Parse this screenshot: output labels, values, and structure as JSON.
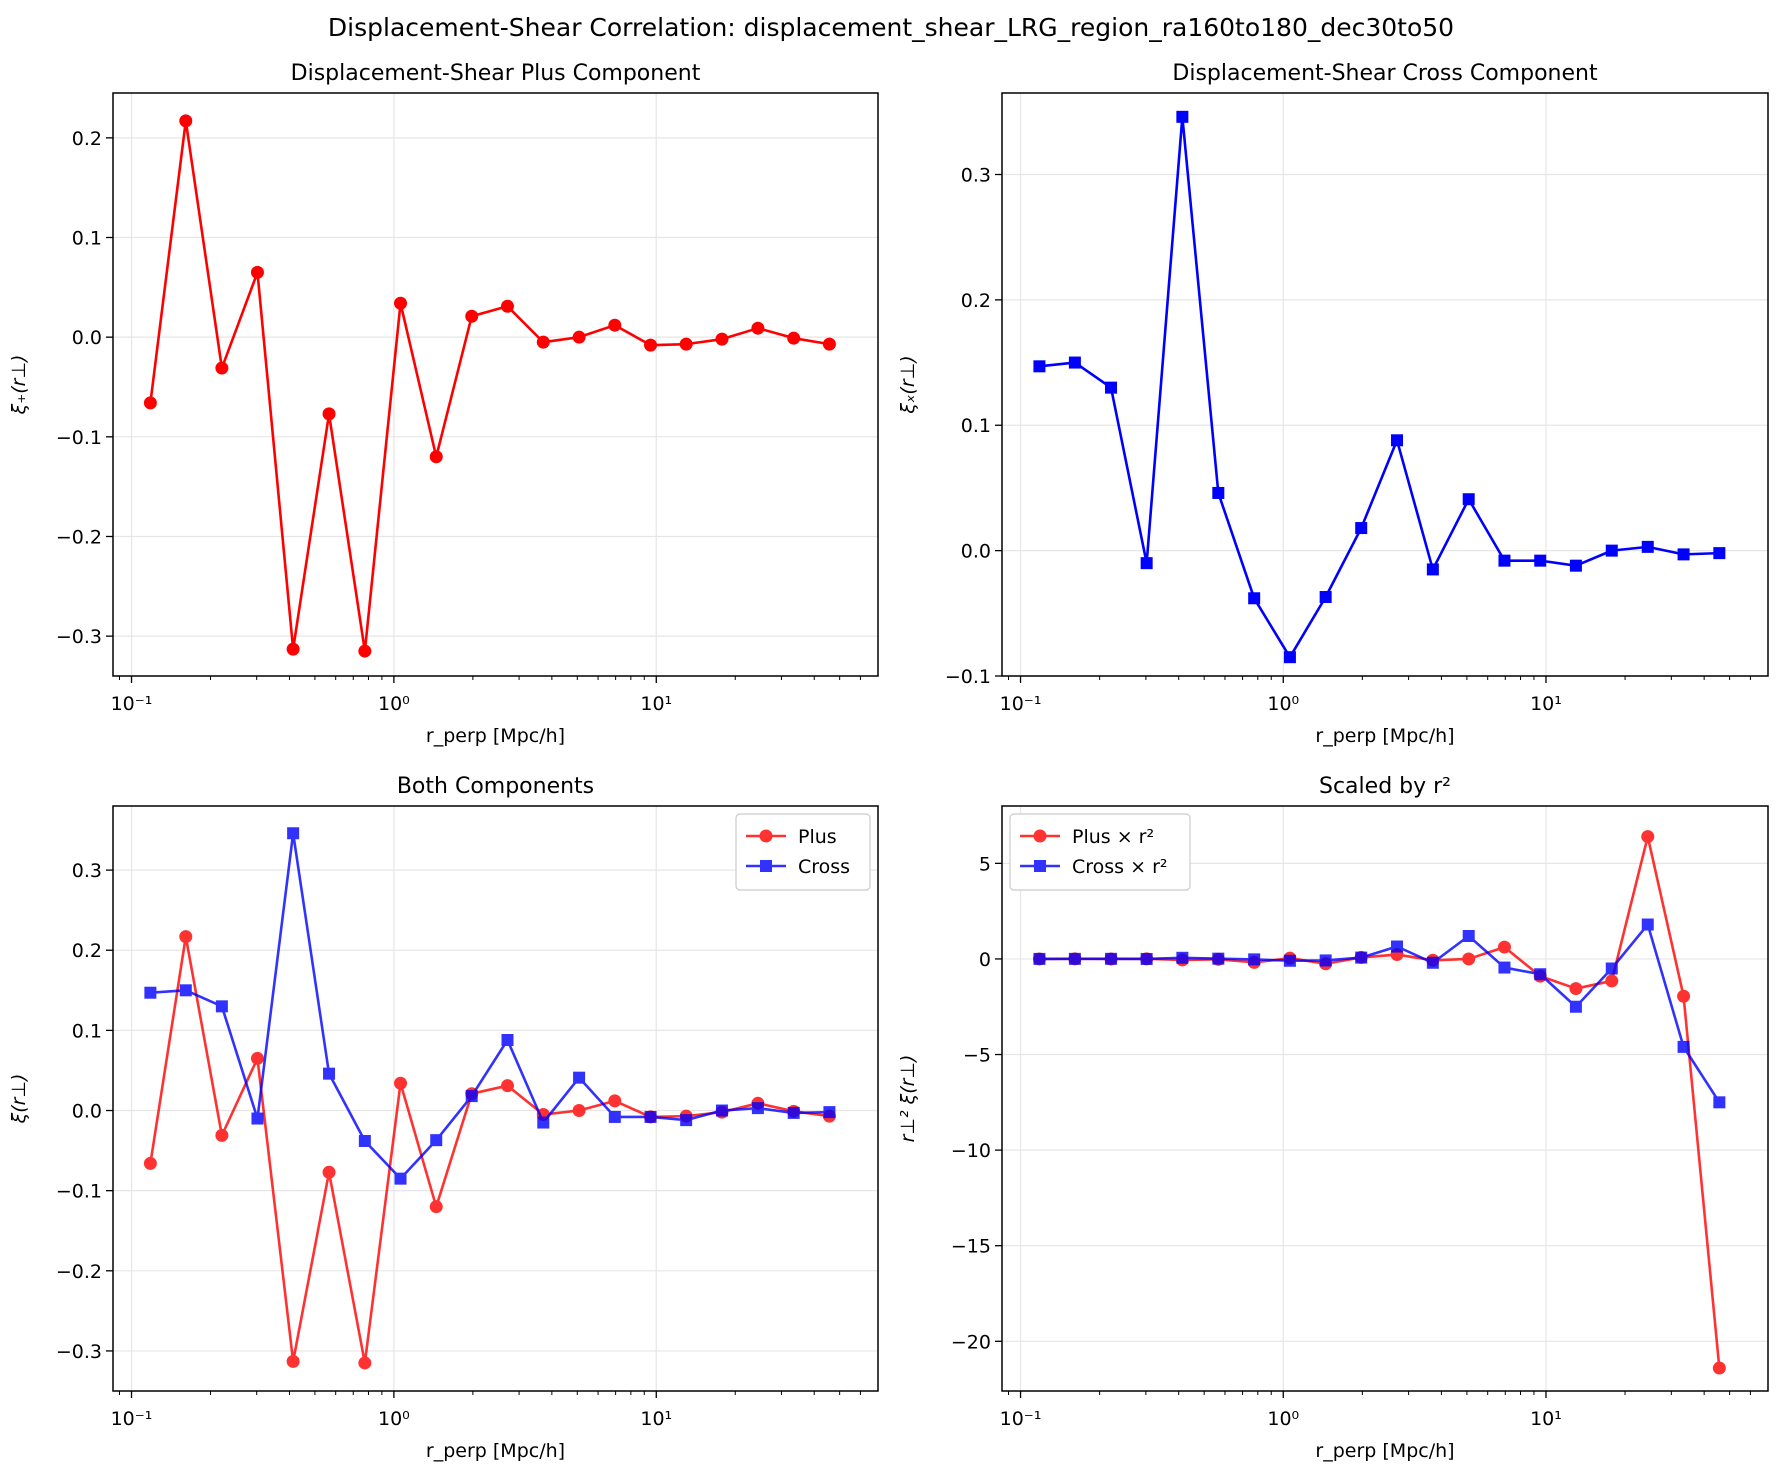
{
  "suptitle": "Displacement-Shear Correlation: displacement_shear_LRG_region_ra160to180_dec30to50",
  "colors": {
    "plus": "#ff0000",
    "cross": "#0000ff",
    "grid": "#e6e6e6"
  },
  "chart_data": [
    {
      "type": "line",
      "title": "Displacement-Shear Plus Component",
      "xlabel": "r_perp [Mpc/h]",
      "ylabel": "ξ₊(r⊥)",
      "xscale": "log",
      "xlim": [
        0.085,
        70
      ],
      "ylim": [
        -0.34,
        0.245
      ],
      "yticks": [
        -0.3,
        -0.2,
        -0.1,
        0.0,
        0.1,
        0.2
      ],
      "ytick_labels": [
        "−0.3",
        "−0.2",
        "−0.1",
        "0.0",
        "0.1",
        "0.2"
      ],
      "xticks": [
        0.1,
        1,
        10
      ],
      "xtick_labels": [
        "10⁻¹",
        "10⁰",
        "10¹"
      ],
      "grid": true,
      "x": [
        0.118,
        0.161,
        0.221,
        0.302,
        0.413,
        0.566,
        0.775,
        1.06,
        1.45,
        1.98,
        2.71,
        3.71,
        5.08,
        6.95,
        9.51,
        13.0,
        17.8,
        24.4,
        33.4,
        45.7
      ],
      "series": [
        {
          "color": "#ff0000",
          "marker": "circle",
          "alpha": 1.0,
          "values": [
            -0.066,
            0.217,
            -0.031,
            0.065,
            -0.313,
            -0.077,
            -0.315,
            0.034,
            -0.12,
            0.021,
            0.031,
            -0.005,
            0.0,
            0.012,
            -0.008,
            -0.007,
            -0.002,
            0.009,
            -0.001,
            -0.007
          ]
        }
      ]
    },
    {
      "type": "line",
      "title": "Displacement-Shear Cross Component",
      "xlabel": "r_perp [Mpc/h]",
      "ylabel": "ξₓ(r⊥)",
      "xscale": "log",
      "xlim": [
        0.085,
        70
      ],
      "ylim": [
        -0.1,
        0.365
      ],
      "yticks": [
        -0.1,
        0.0,
        0.1,
        0.2,
        0.3
      ],
      "ytick_labels": [
        "−0.1",
        "0.0",
        "0.1",
        "0.2",
        "0.3"
      ],
      "xticks": [
        0.1,
        1,
        10
      ],
      "xtick_labels": [
        "10⁻¹",
        "10⁰",
        "10¹"
      ],
      "grid": true,
      "x": [
        0.118,
        0.161,
        0.221,
        0.302,
        0.413,
        0.566,
        0.775,
        1.06,
        1.45,
        1.98,
        2.71,
        3.71,
        5.08,
        6.95,
        9.51,
        13.0,
        17.8,
        24.4,
        33.4,
        45.7
      ],
      "series": [
        {
          "color": "#0000ff",
          "marker": "square",
          "alpha": 1.0,
          "values": [
            0.147,
            0.15,
            0.13,
            -0.01,
            0.346,
            0.046,
            -0.038,
            -0.085,
            -0.037,
            0.018,
            0.088,
            -0.015,
            0.041,
            -0.008,
            -0.008,
            -0.012,
            0.0,
            0.003,
            -0.003,
            -0.002
          ]
        }
      ]
    },
    {
      "type": "line",
      "title": "Both Components",
      "xlabel": "r_perp [Mpc/h]",
      "ylabel": "ξ(r⊥)",
      "xscale": "log",
      "xlim": [
        0.085,
        70
      ],
      "ylim": [
        -0.35,
        0.38
      ],
      "yticks": [
        -0.3,
        -0.2,
        -0.1,
        0.0,
        0.1,
        0.2,
        0.3
      ],
      "ytick_labels": [
        "−0.3",
        "−0.2",
        "−0.1",
        "0.0",
        "0.1",
        "0.2",
        "0.3"
      ],
      "xticks": [
        0.1,
        1,
        10
      ],
      "xtick_labels": [
        "10⁻¹",
        "10⁰",
        "10¹"
      ],
      "grid": true,
      "legend": "top-right",
      "x": [
        0.118,
        0.161,
        0.221,
        0.302,
        0.413,
        0.566,
        0.775,
        1.06,
        1.45,
        1.98,
        2.71,
        3.71,
        5.08,
        6.95,
        9.51,
        13.0,
        17.8,
        24.4,
        33.4,
        45.7
      ],
      "series": [
        {
          "name": "Plus",
          "color": "#ff0000",
          "marker": "circle",
          "alpha": 0.8,
          "values": [
            -0.066,
            0.217,
            -0.031,
            0.065,
            -0.313,
            -0.077,
            -0.315,
            0.034,
            -0.12,
            0.021,
            0.031,
            -0.005,
            0.0,
            0.012,
            -0.008,
            -0.007,
            -0.002,
            0.009,
            -0.001,
            -0.007
          ]
        },
        {
          "name": "Cross",
          "color": "#0000ff",
          "marker": "square",
          "alpha": 0.8,
          "values": [
            0.147,
            0.15,
            0.13,
            -0.01,
            0.346,
            0.046,
            -0.038,
            -0.085,
            -0.037,
            0.018,
            0.088,
            -0.015,
            0.041,
            -0.008,
            -0.008,
            -0.012,
            0.0,
            0.003,
            -0.003,
            -0.002
          ]
        }
      ]
    },
    {
      "type": "line",
      "title": "Scaled by r²",
      "xlabel": "r_perp [Mpc/h]",
      "ylabel": "r⊥² ξ(r⊥)",
      "xscale": "log",
      "xlim": [
        0.085,
        70
      ],
      "ylim": [
        -22.6,
        8
      ],
      "yticks": [
        -20,
        -15,
        -10,
        -5,
        0,
        5
      ],
      "ytick_labels": [
        "−20",
        "−15",
        "−10",
        "−5",
        "0",
        "5"
      ],
      "xticks": [
        0.1,
        1,
        10
      ],
      "xtick_labels": [
        "10⁻¹",
        "10⁰",
        "10¹"
      ],
      "grid": true,
      "legend": "top-left",
      "x": [
        0.118,
        0.161,
        0.221,
        0.302,
        0.413,
        0.566,
        0.775,
        1.06,
        1.45,
        1.98,
        2.71,
        3.71,
        5.08,
        6.95,
        9.51,
        13.0,
        17.8,
        24.4,
        33.4,
        45.7
      ],
      "series": [
        {
          "name": "Plus × r²",
          "color": "#ff0000",
          "marker": "circle",
          "alpha": 0.8,
          "values": [
            -0.001,
            0.006,
            -0.002,
            0.006,
            -0.05,
            -0.02,
            -0.18,
            0.04,
            -0.25,
            0.08,
            0.23,
            -0.07,
            0.0,
            0.62,
            -0.9,
            -1.55,
            -1.15,
            6.4,
            -1.95,
            -21.4
          ]
        },
        {
          "name": "Cross × r²",
          "color": "#0000ff",
          "marker": "square",
          "alpha": 0.8,
          "values": [
            0.002,
            0.004,
            0.006,
            -0.001,
            0.06,
            0.015,
            -0.023,
            -0.095,
            -0.078,
            0.07,
            0.65,
            -0.2,
            1.2,
            -0.45,
            -0.8,
            -2.5,
            -0.5,
            1.8,
            -4.6,
            -7.5
          ]
        }
      ]
    }
  ]
}
